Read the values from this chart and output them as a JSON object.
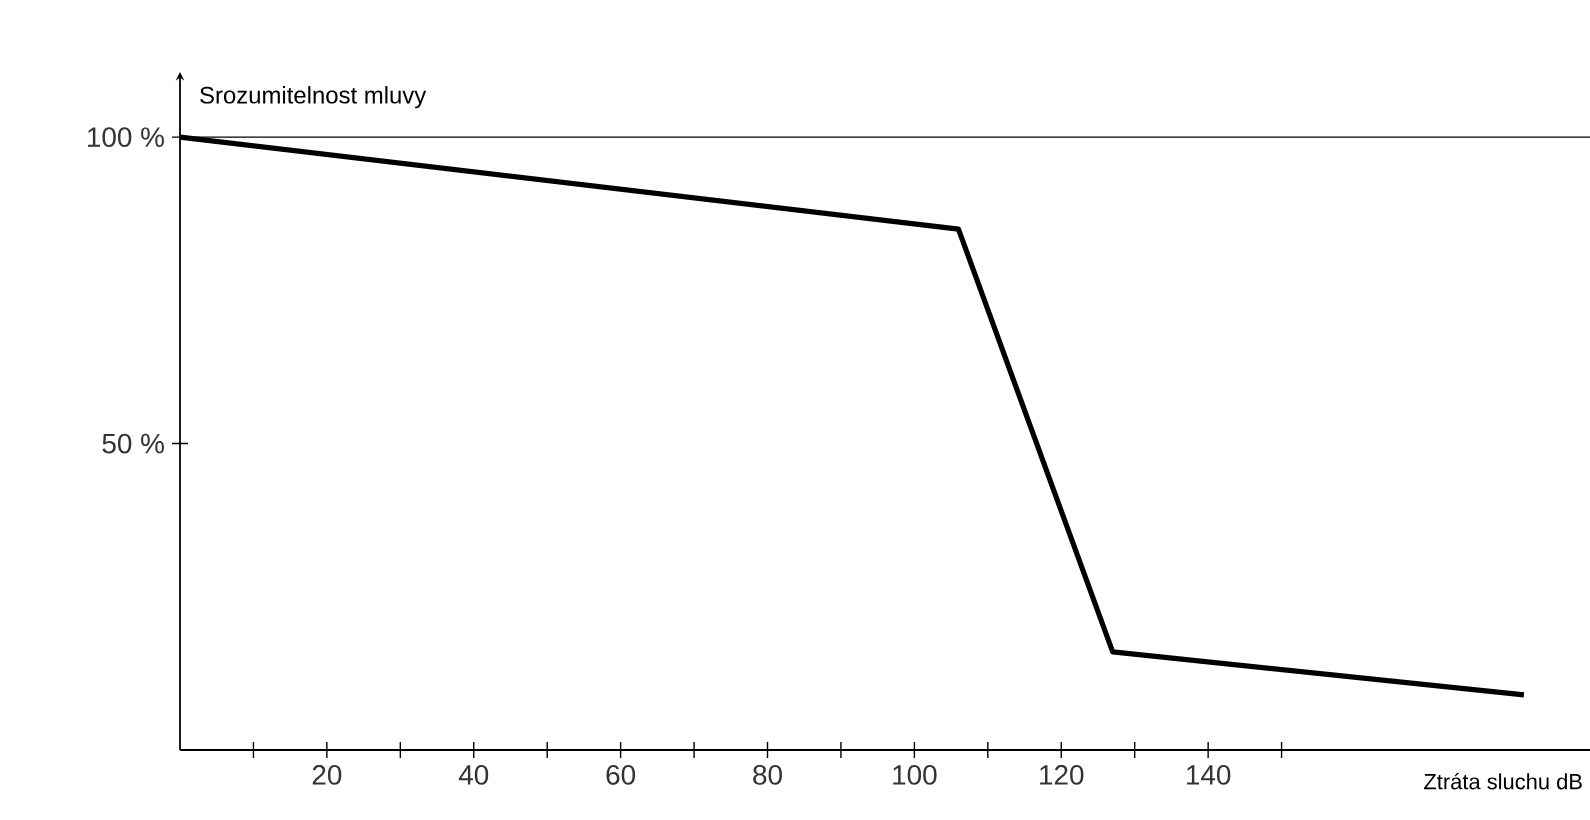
{
  "chart_data": {
    "type": "line",
    "xlabel": "Ztráta sluchu dB",
    "ylabel": "Srozumitelnost mluvy",
    "x": [
      0,
      106,
      127,
      183
    ],
    "series": [
      {
        "color": "#000000",
        "values": [
          100,
          85,
          16,
          9
        ]
      }
    ],
    "xlim": [
      0,
      192
    ],
    "ylim": [
      0,
      109
    ],
    "xticks": [
      {
        "value": 10,
        "label": null
      },
      20,
      {
        "value": 30,
        "label": null
      },
      40,
      {
        "value": 50,
        "label": null
      },
      60,
      {
        "value": 70,
        "label": null
      },
      80,
      {
        "value": 90,
        "label": null
      },
      100,
      {
        "value": 110,
        "label": null
      },
      120,
      {
        "value": 130,
        "label": null
      },
      140,
      {
        "value": 150,
        "label": null
      }
    ],
    "yticks": [
      {
        "value": 50,
        "label": "50 %"
      },
      {
        "value": 100,
        "label": "100 %"
      }
    ],
    "ref_lines": [
      {
        "axis": "y",
        "value": 100,
        "color": "#000000"
      }
    ],
    "grid": false,
    "marker": "none",
    "line_style": "solid"
  }
}
